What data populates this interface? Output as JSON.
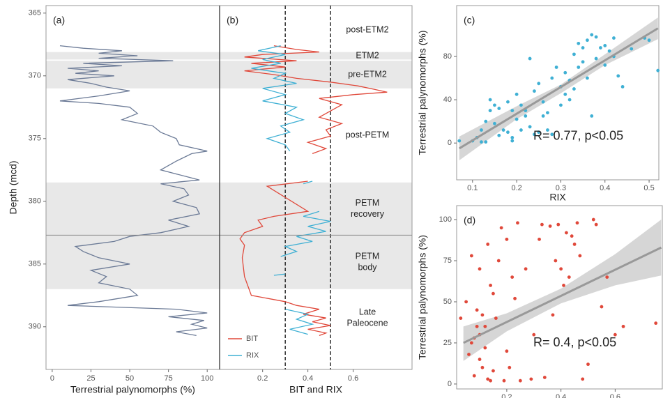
{
  "chart_data": [
    {
      "type": "profile",
      "label": "(a)",
      "xlabel": "Terrestrial palynomorphs (%)",
      "ylabel": "Depth (mcd)",
      "xlim": [
        -4,
        108
      ],
      "xticks": [
        0,
        25,
        50,
        75,
        100
      ],
      "ylim": [
        364.4,
        393.4
      ],
      "yticks": [
        365,
        370,
        375,
        380,
        385,
        390
      ],
      "series": [
        {
          "color": "#6b7a96",
          "depth": [
            367.6,
            367.8,
            368.0,
            368.2,
            368.4,
            368.6,
            368.8,
            369.0,
            369.2,
            369.4,
            369.6,
            369.8,
            370.0,
            370.3,
            370.6,
            370.9,
            371.2,
            371.6,
            372.0,
            372.2,
            372.5,
            373.0,
            373.5,
            374.0,
            374.5,
            375.0,
            375.5,
            376.0,
            376.2,
            376.8,
            377.5,
            378.3,
            378.6,
            379.0,
            379.5,
            380.0,
            380.5,
            381.0,
            381.5,
            382.0,
            382.5,
            382.8,
            383.2,
            383.6,
            384.0,
            384.5,
            385.0,
            385.5,
            386.0,
            386.5,
            387.0,
            387.5,
            388.0,
            388.3,
            388.6,
            388.9,
            389.2,
            389.5,
            389.8,
            390.1,
            390.4,
            390.7
          ],
          "values": [
            5,
            20,
            45,
            30,
            55,
            30,
            78,
            20,
            45,
            10,
            30,
            15,
            40,
            10,
            25,
            35,
            50,
            30,
            5,
            30,
            50,
            55,
            45,
            65,
            70,
            80,
            82,
            100,
            90,
            80,
            70,
            95,
            70,
            85,
            88,
            78,
            93,
            95,
            75,
            88,
            70,
            50,
            40,
            15,
            20,
            30,
            50,
            25,
            35,
            30,
            50,
            55,
            30,
            10,
            80,
            100,
            75,
            98,
            90,
            100,
            80,
            93
          ]
        }
      ]
    },
    {
      "type": "profile",
      "label": "(b)",
      "xlabel": "BIT and RIX",
      "xlim": [
        0.01,
        0.86
      ],
      "xticks": [
        0.2,
        0.4,
        0.6
      ],
      "ylim": [
        364.4,
        393.4
      ],
      "reference_lines": [
        0.3,
        0.5
      ],
      "legend": "bottom-left",
      "intervals": [
        {
          "name": [
            "post-ETM2"
          ],
          "top": 364.6,
          "bottom": 368.1,
          "shaded": false
        },
        {
          "name": [
            "ETM2"
          ],
          "top": 368.1,
          "bottom": 368.7,
          "shaded": true
        },
        {
          "name": [
            "pre-ETM2"
          ],
          "top": 368.8,
          "bottom": 371.0,
          "shaded": true
        },
        {
          "name": [
            "post-PETM"
          ],
          "top": 371.0,
          "bottom": 378.5,
          "shaded": false
        },
        {
          "name": [
            "PETM",
            "recovery"
          ],
          "top": 378.5,
          "bottom": 382.7,
          "shaded": true
        },
        {
          "name": [
            "PETM",
            "body"
          ],
          "top": 382.7,
          "bottom": 387.0,
          "shaded": true
        },
        {
          "name": [
            "Late",
            "Paleocene"
          ],
          "top": 387.0,
          "bottom": 391.6,
          "shaded": false
        }
      ],
      "series": [
        {
          "name": "BIT",
          "color": "#e0483a",
          "depth": [
            367.6,
            367.9,
            368.1,
            368.3,
            368.5,
            368.8,
            369.0,
            369.3,
            369.6,
            369.9,
            370.2,
            370.5,
            370.8,
            371.1,
            371.3,
            371.5,
            371.8,
            372.3,
            372.8,
            373.3,
            373.8,
            374.3,
            374.8,
            375.3,
            375.8,
            376.2,
            null,
            378.4,
            378.8,
            380.8,
            381.2,
            381.5,
            382.0,
            382.5,
            383.0,
            383.5,
            384.5,
            386.0,
            387.5,
            388.0,
            388.3,
            388.6,
            389.0,
            389.3,
            389.6,
            389.9,
            390.2,
            390.5,
            390.7
          ],
          "values": [
            0.25,
            0.35,
            0.45,
            0.2,
            0.12,
            0.35,
            0.15,
            0.3,
            0.12,
            0.25,
            0.35,
            0.5,
            0.62,
            0.7,
            0.75,
            0.6,
            0.45,
            0.55,
            0.5,
            0.45,
            0.55,
            0.48,
            0.5,
            0.4,
            0.48,
            0.42,
            null,
            0.4,
            0.22,
            0.4,
            0.25,
            0.18,
            0.2,
            0.12,
            0.1,
            0.12,
            0.11,
            0.12,
            0.15,
            0.3,
            0.35,
            0.45,
            0.38,
            0.48,
            0.42,
            0.5,
            0.4,
            0.48,
            0.45
          ]
        },
        {
          "name": "RIX",
          "color": "#3fb0d4",
          "depth": [
            367.6,
            368.0,
            368.3,
            368.7,
            369.0,
            369.4,
            369.8,
            370.2,
            370.6,
            371.0,
            371.5,
            372.0,
            372.5,
            373.0,
            373.5,
            374.0,
            374.5,
            375.0,
            375.5,
            376.0,
            null,
            378.4,
            378.6,
            null,
            380.8,
            381.2,
            381.6,
            382.0,
            382.4,
            382.8,
            383.2,
            383.6,
            384.0,
            384.4,
            null,
            385.8,
            385.9,
            null,
            388.6,
            389.0,
            389.4,
            389.8,
            390.2,
            390.6
          ],
          "values": [
            0.28,
            0.18,
            0.3,
            0.2,
            0.28,
            0.15,
            0.3,
            0.25,
            0.35,
            0.2,
            0.3,
            0.2,
            0.35,
            0.3,
            0.38,
            0.28,
            0.32,
            0.22,
            0.3,
            0.32,
            null,
            0.42,
            0.38,
            null,
            0.45,
            0.38,
            0.5,
            0.4,
            0.48,
            0.35,
            0.42,
            0.3,
            0.35,
            0.28,
            null,
            0.3,
            0.25,
            null,
            0.3,
            0.4,
            0.35,
            0.42,
            0.32,
            0.4
          ]
        }
      ]
    },
    {
      "type": "scatter",
      "label": "(c)",
      "xlabel": "RIX",
      "ylabel": "Terrestrial palynomorphs (%)",
      "annotation": "R= 0.77, p<0.05",
      "xlim": [
        0.064,
        0.522
      ],
      "xticks": [
        0.1,
        0.2,
        0.3,
        0.4,
        0.5
      ],
      "ylim": [
        -34,
        127
      ],
      "yticks": [
        0,
        40,
        80
      ],
      "color": "#3fb0d4",
      "x": [
        0.07,
        0.1,
        0.11,
        0.12,
        0.12,
        0.13,
        0.13,
        0.14,
        0.14,
        0.15,
        0.15,
        0.16,
        0.16,
        0.17,
        0.18,
        0.18,
        0.19,
        0.19,
        0.19,
        0.2,
        0.2,
        0.21,
        0.21,
        0.22,
        0.22,
        0.23,
        0.23,
        0.24,
        0.24,
        0.25,
        0.25,
        0.26,
        0.26,
        0.27,
        0.27,
        0.28,
        0.28,
        0.29,
        0.3,
        0.3,
        0.31,
        0.31,
        0.32,
        0.32,
        0.33,
        0.33,
        0.34,
        0.34,
        0.35,
        0.35,
        0.36,
        0.36,
        0.37,
        0.37,
        0.38,
        0.38,
        0.39,
        0.4,
        0.4,
        0.41,
        0.42,
        0.42,
        0.43,
        0.44,
        0.46,
        0.49,
        0.52,
        0.5
      ],
      "values": [
        2,
        2,
        5,
        12,
        1,
        1,
        20,
        30,
        40,
        18,
        35,
        32,
        7,
        12,
        10,
        38,
        5,
        2,
        30,
        45,
        22,
        35,
        12,
        25,
        30,
        78,
        15,
        48,
        8,
        55,
        10,
        38,
        25,
        28,
        12,
        8,
        60,
        70,
        52,
        35,
        45,
        65,
        58,
        40,
        82,
        50,
        70,
        92,
        75,
        88,
        95,
        60,
        100,
        25,
        98,
        78,
        88,
        72,
        90,
        85,
        80,
        97,
        62,
        52,
        87,
        97,
        67,
        95
      ],
      "fit": {
        "x": [
          0.07,
          0.52
        ],
        "values": [
          -5,
          106
        ]
      },
      "band": {
        "x": [
          0.07,
          0.2,
          0.3,
          0.4,
          0.52
        ],
        "lower": [
          -16,
          22,
          46,
          72,
          96
        ],
        "upper": [
          6,
          34,
          54,
          82,
          116
        ]
      }
    },
    {
      "type": "scatter",
      "label": "(d)",
      "xlabel": "BIT",
      "ylabel": "Terrestrial palynomorphs (%)",
      "annotation": "R= 0.4, p<0.05",
      "xlim": [
        0.015,
        0.774
      ],
      "xticks": [
        0.2,
        0.4,
        0.6
      ],
      "ylim": [
        -3,
        108.5
      ],
      "yticks": [
        0,
        25,
        50,
        75,
        100
      ],
      "color": "#e0483a",
      "x": [
        0.03,
        0.05,
        0.06,
        0.07,
        0.07,
        0.08,
        0.08,
        0.09,
        0.09,
        0.1,
        0.1,
        0.1,
        0.11,
        0.11,
        0.12,
        0.12,
        0.13,
        0.13,
        0.14,
        0.14,
        0.15,
        0.15,
        0.16,
        0.17,
        0.18,
        0.19,
        0.2,
        0.2,
        0.21,
        0.22,
        0.23,
        0.24,
        0.25,
        0.27,
        0.29,
        0.3,
        0.32,
        0.33,
        0.34,
        0.36,
        0.37,
        0.38,
        0.39,
        0.4,
        0.41,
        0.42,
        0.43,
        0.44,
        0.45,
        0.46,
        0.47,
        0.48,
        0.5,
        0.52,
        0.53,
        0.55,
        0.57,
        0.6,
        0.63,
        0.75
      ],
      "values": [
        40,
        50,
        18,
        25,
        78,
        28,
        5,
        45,
        35,
        30,
        70,
        15,
        42,
        10,
        35,
        22,
        85,
        3,
        2,
        60,
        55,
        8,
        40,
        75,
        95,
        2,
        20,
        88,
        10,
        65,
        52,
        98,
        2,
        70,
        3,
        30,
        88,
        97,
        4,
        96,
        42,
        75,
        97,
        70,
        60,
        92,
        65,
        90,
        85,
        98,
        78,
        3,
        12,
        100,
        97,
        47,
        65,
        30,
        35,
        37
      ],
      "fit": {
        "x": [
          0.04,
          0.77
        ],
        "values": [
          25,
          83
        ]
      },
      "band": {
        "x": [
          0.04,
          0.2,
          0.4,
          0.6,
          0.77
        ],
        "lower": [
          14,
          32,
          49,
          60,
          66
        ],
        "upper": [
          35,
          43,
          58,
          79,
          100
        ]
      }
    }
  ]
}
